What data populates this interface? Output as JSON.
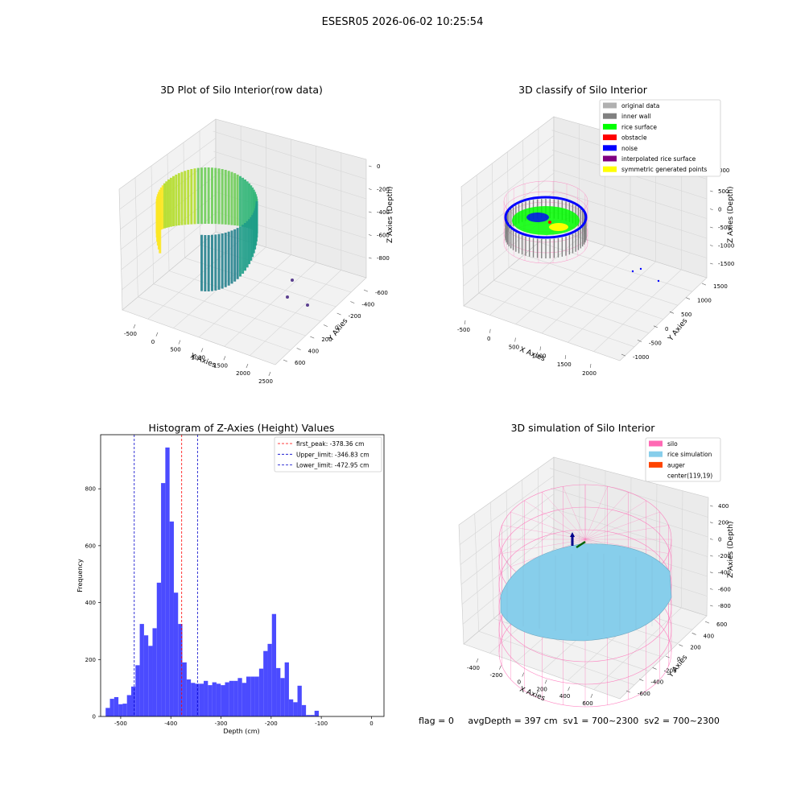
{
  "figure_title": "ESESR05 2026-06-02 10:25:54",
  "footer": "flag = 0     avgDepth = 397 cm  sv1 = 700~2300  sv2 = 700~2300",
  "colors": {
    "hist_bar": "#4b4bff",
    "first_peak": "#ff0000",
    "limits": "#0000cc",
    "silo": "#ff69b4",
    "rice_sim": "#87ceeb",
    "auger": "#ff4500"
  },
  "panels": {
    "raw": {
      "title": "3D Plot of Silo Interior(row data)",
      "xlabel": "X Axies",
      "ylabel": "Y Axies",
      "zlabel": "Z Axies (Depth)",
      "xticks": [
        "-500",
        "0",
        "500",
        "1000",
        "1500",
        "2000",
        "2500"
      ],
      "yticks": [
        "-600",
        "-400",
        "-200",
        "0",
        "200",
        "400",
        "600"
      ],
      "zticks": [
        "0",
        "-200",
        "-400",
        "-600",
        "-800"
      ]
    },
    "classify": {
      "title": "3D classify of Silo Interior",
      "xlabel": "X Axies",
      "ylabel": "Y Axies",
      "zlabel": "Z Axies (Depth)",
      "xticks": [
        "-500",
        "0",
        "500",
        "1000",
        "1500",
        "2000"
      ],
      "yticks": [
        "-1000",
        "-500",
        "0",
        "500",
        "1000",
        "1500"
      ],
      "zticks": [
        "500",
        "0",
        "-500",
        "-1000",
        "-1500"
      ],
      "ztick_partial": "000",
      "legend": [
        {
          "label": "original data",
          "color": "#b0b0b0"
        },
        {
          "label": "inner wall",
          "color": "#808080"
        },
        {
          "label": "rice surface",
          "color": "#00ff00"
        },
        {
          "label": "obstacle",
          "color": "#ff0000"
        },
        {
          "label": "noise",
          "color": "#0000ff"
        },
        {
          "label": "interpolated rice surface",
          "color": "#800080"
        },
        {
          "label": "symmetric generated points",
          "color": "#ffff00"
        }
      ]
    },
    "simulation": {
      "title": "3D simulation of Silo Interior",
      "xlabel": "X Axies",
      "ylabel": "Y Axies",
      "zlabel": "Z Axies (Depth)",
      "xticks": [
        "-400",
        "-200",
        "0",
        "200",
        "400",
        "600"
      ],
      "yticks": [
        "-600",
        "-400",
        "-200",
        "0",
        "200",
        "400",
        "600"
      ],
      "zticks": [
        "400",
        "200",
        "0",
        "-200",
        "-400",
        "-600",
        "-800"
      ],
      "legend": [
        {
          "label": "silo",
          "color": "#ff69b4"
        },
        {
          "label": "rice simulation",
          "color": "#87ceeb"
        },
        {
          "label": "auger",
          "color": "#ff4500"
        },
        {
          "label": "center(119,19)",
          "color": null
        }
      ]
    }
  },
  "chart_data": {
    "type": "bar",
    "title": "Histogram of Z-Axies (Height) Values",
    "xlabel": "Depth (cm)",
    "ylabel": "Frequency",
    "xlim": [
      -540,
      25
    ],
    "ylim": [
      0,
      990
    ],
    "xticks": [
      -500,
      -400,
      -300,
      -200,
      -100,
      0
    ],
    "yticks": [
      0,
      200,
      400,
      600,
      800
    ],
    "bin_start": -530,
    "bin_width": 8.5,
    "values": [
      30,
      62,
      68,
      43,
      45,
      75,
      105,
      180,
      325,
      285,
      248,
      310,
      470,
      820,
      945,
      685,
      435,
      325,
      190,
      130,
      118,
      115,
      115,
      125,
      110,
      120,
      115,
      110,
      120,
      125,
      125,
      135,
      118,
      140,
      140,
      140,
      168,
      230,
      255,
      360,
      170,
      135,
      190,
      60,
      50,
      108,
      40,
      5,
      5,
      20
    ],
    "lines": [
      {
        "label": "first_peak: -378.36 cm",
        "x": -378.36,
        "color": "#ff0000"
      },
      {
        "label": "Upper_limit: -346.83 cm",
        "x": -346.83,
        "color": "#0000cc"
      },
      {
        "label": "Lower_limit: -472.95 cm",
        "x": -472.95,
        "color": "#0000cc"
      }
    ],
    "legend_position": "upper right"
  }
}
